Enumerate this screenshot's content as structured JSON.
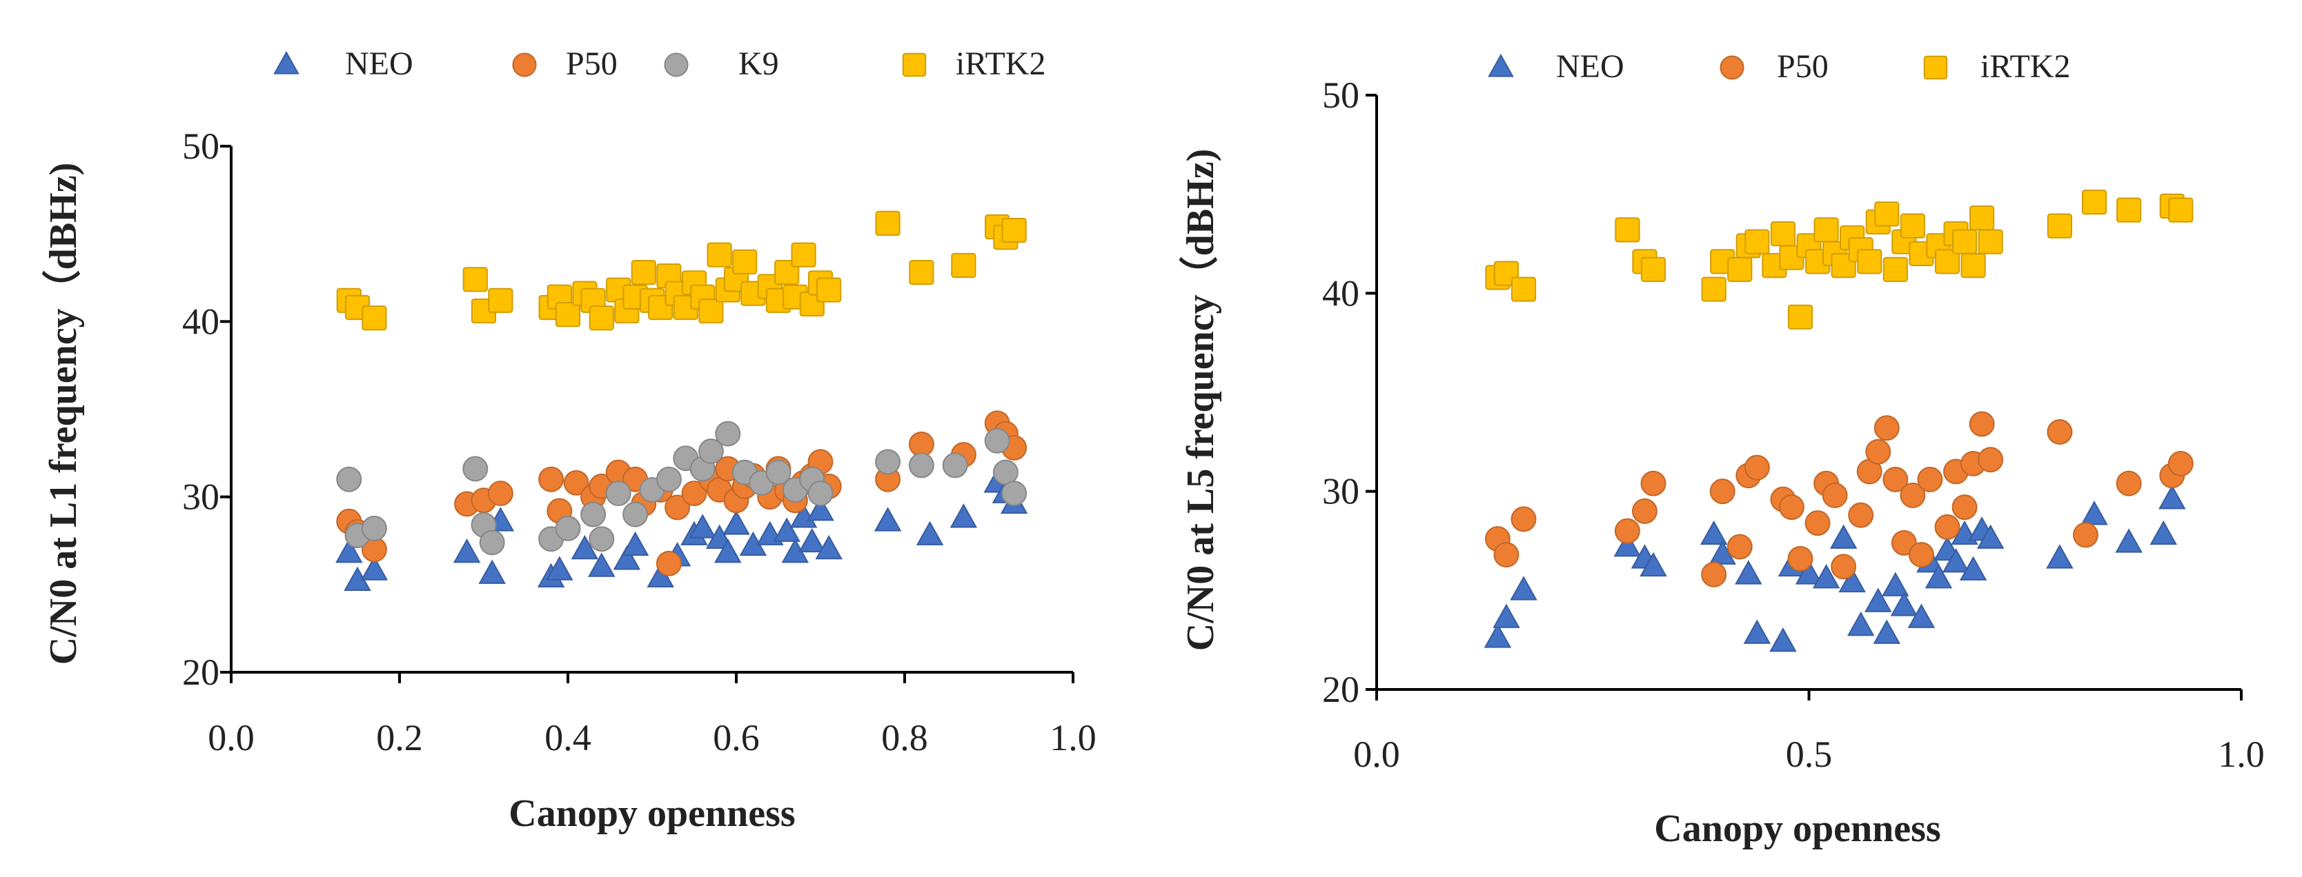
{
  "chart_data": [
    {
      "type": "scatter",
      "xlabel": "Canopy openness",
      "ylabel": "C/N0 at L1 frequency（dBHz)",
      "xlim": [
        0.0,
        1.0
      ],
      "ylim": [
        20,
        50
      ],
      "xticks": [
        "0.0",
        "0.2",
        "0.4",
        "0.6",
        "0.8",
        "1.0"
      ],
      "yticks": [
        "20",
        "30",
        "40",
        "50"
      ],
      "legend_position": "top",
      "series": [
        {
          "name": "NEO",
          "marker": "triangle",
          "color": "#4472C4",
          "points": [
            [
              0.14,
              26.8
            ],
            [
              0.15,
              25.2
            ],
            [
              0.17,
              25.8
            ],
            [
              0.28,
              26.8
            ],
            [
              0.31,
              25.6
            ],
            [
              0.32,
              28.6
            ],
            [
              0.38,
              25.4
            ],
            [
              0.39,
              25.8
            ],
            [
              0.42,
              27.0
            ],
            [
              0.44,
              26.0
            ],
            [
              0.47,
              26.4
            ],
            [
              0.48,
              27.2
            ],
            [
              0.51,
              25.4
            ],
            [
              0.53,
              26.6
            ],
            [
              0.55,
              27.8
            ],
            [
              0.56,
              28.2
            ],
            [
              0.58,
              27.6
            ],
            [
              0.59,
              26.8
            ],
            [
              0.6,
              28.4
            ],
            [
              0.62,
              27.2
            ],
            [
              0.64,
              27.8
            ],
            [
              0.66,
              28.0
            ],
            [
              0.67,
              26.8
            ],
            [
              0.68,
              28.8
            ],
            [
              0.69,
              27.4
            ],
            [
              0.7,
              29.2
            ],
            [
              0.71,
              27.0
            ],
            [
              0.78,
              28.6
            ],
            [
              0.83,
              27.8
            ],
            [
              0.87,
              28.8
            ],
            [
              0.91,
              30.8
            ],
            [
              0.92,
              30.2
            ],
            [
              0.93,
              29.6
            ]
          ]
        },
        {
          "name": "P50",
          "marker": "circle",
          "color": "#ED7D31",
          "points": [
            [
              0.14,
              28.6
            ],
            [
              0.15,
              28.0
            ],
            [
              0.17,
              27.0
            ],
            [
              0.28,
              29.6
            ],
            [
              0.3,
              29.8
            ],
            [
              0.32,
              30.2
            ],
            [
              0.38,
              31.0
            ],
            [
              0.39,
              29.2
            ],
            [
              0.41,
              30.8
            ],
            [
              0.43,
              30.0
            ],
            [
              0.44,
              30.6
            ],
            [
              0.46,
              31.4
            ],
            [
              0.48,
              31.0
            ],
            [
              0.49,
              29.6
            ],
            [
              0.51,
              30.4
            ],
            [
              0.52,
              26.2
            ],
            [
              0.53,
              29.4
            ],
            [
              0.55,
              30.2
            ],
            [
              0.57,
              31.0
            ],
            [
              0.58,
              30.4
            ],
            [
              0.59,
              31.6
            ],
            [
              0.6,
              29.8
            ],
            [
              0.61,
              30.6
            ],
            [
              0.62,
              31.2
            ],
            [
              0.64,
              30.0
            ],
            [
              0.65,
              31.6
            ],
            [
              0.66,
              30.4
            ],
            [
              0.67,
              29.8
            ],
            [
              0.68,
              30.8
            ],
            [
              0.69,
              31.2
            ],
            [
              0.7,
              32.0
            ],
            [
              0.71,
              30.6
            ],
            [
              0.78,
              31.0
            ],
            [
              0.82,
              33.0
            ],
            [
              0.87,
              32.4
            ],
            [
              0.91,
              34.2
            ],
            [
              0.92,
              33.6
            ],
            [
              0.93,
              32.8
            ]
          ]
        },
        {
          "name": "K9",
          "marker": "circle",
          "color": "#A5A5A5",
          "points": [
            [
              0.14,
              31.0
            ],
            [
              0.15,
              27.8
            ],
            [
              0.17,
              28.2
            ],
            [
              0.29,
              31.6
            ],
            [
              0.3,
              28.4
            ],
            [
              0.31,
              27.4
            ],
            [
              0.38,
              27.6
            ],
            [
              0.4,
              28.2
            ],
            [
              0.43,
              29.0
            ],
            [
              0.44,
              27.6
            ],
            [
              0.46,
              30.2
            ],
            [
              0.48,
              29.0
            ],
            [
              0.5,
              30.4
            ],
            [
              0.52,
              31.0
            ],
            [
              0.54,
              32.2
            ],
            [
              0.56,
              31.6
            ],
            [
              0.57,
              32.6
            ],
            [
              0.59,
              33.6
            ],
            [
              0.61,
              31.4
            ],
            [
              0.63,
              30.8
            ],
            [
              0.65,
              31.4
            ],
            [
              0.67,
              30.4
            ],
            [
              0.69,
              31.0
            ],
            [
              0.7,
              30.2
            ],
            [
              0.78,
              32.0
            ],
            [
              0.82,
              31.8
            ],
            [
              0.86,
              31.8
            ],
            [
              0.91,
              33.2
            ],
            [
              0.92,
              31.4
            ],
            [
              0.93,
              30.2
            ]
          ]
        },
        {
          "name": "iRTK2",
          "marker": "square",
          "color": "#FFC000",
          "points": [
            [
              0.14,
              41.2
            ],
            [
              0.15,
              40.8
            ],
            [
              0.17,
              40.2
            ],
            [
              0.29,
              42.4
            ],
            [
              0.3,
              40.6
            ],
            [
              0.32,
              41.2
            ],
            [
              0.38,
              40.8
            ],
            [
              0.39,
              41.4
            ],
            [
              0.4,
              40.4
            ],
            [
              0.42,
              41.6
            ],
            [
              0.43,
              41.2
            ],
            [
              0.44,
              40.2
            ],
            [
              0.46,
              41.8
            ],
            [
              0.47,
              40.6
            ],
            [
              0.48,
              41.4
            ],
            [
              0.49,
              42.8
            ],
            [
              0.5,
              41.2
            ],
            [
              0.51,
              40.8
            ],
            [
              0.52,
              42.6
            ],
            [
              0.53,
              41.6
            ],
            [
              0.54,
              40.8
            ],
            [
              0.55,
              42.2
            ],
            [
              0.56,
              41.4
            ],
            [
              0.57,
              40.6
            ],
            [
              0.58,
              43.8
            ],
            [
              0.59,
              41.8
            ],
            [
              0.6,
              42.4
            ],
            [
              0.61,
              43.4
            ],
            [
              0.62,
              41.6
            ],
            [
              0.64,
              42.0
            ],
            [
              0.65,
              41.2
            ],
            [
              0.66,
              42.8
            ],
            [
              0.67,
              41.4
            ],
            [
              0.68,
              43.8
            ],
            [
              0.69,
              41.0
            ],
            [
              0.7,
              42.2
            ],
            [
              0.71,
              41.8
            ],
            [
              0.78,
              45.6
            ],
            [
              0.82,
              42.8
            ],
            [
              0.87,
              43.2
            ],
            [
              0.91,
              45.4
            ],
            [
              0.92,
              44.8
            ],
            [
              0.93,
              45.2
            ]
          ]
        }
      ]
    },
    {
      "type": "scatter",
      "xlabel": "Canopy openness",
      "ylabel": "C/N0 at L5 frequency（dBHz)",
      "xlim": [
        0.0,
        1.0
      ],
      "ylim": [
        20,
        50
      ],
      "xticks": [
        "0.0",
        "0.5",
        "1.0"
      ],
      "yticks": [
        "20",
        "30",
        "40",
        "50"
      ],
      "legend_position": "top",
      "series": [
        {
          "name": "NEO",
          "marker": "triangle",
          "color": "#4472C4",
          "points": [
            [
              0.14,
              22.6
            ],
            [
              0.15,
              23.6
            ],
            [
              0.17,
              25.0
            ],
            [
              0.29,
              27.2
            ],
            [
              0.31,
              26.6
            ],
            [
              0.32,
              26.2
            ],
            [
              0.39,
              27.8
            ],
            [
              0.4,
              26.8
            ],
            [
              0.43,
              25.8
            ],
            [
              0.44,
              22.8
            ],
            [
              0.47,
              22.4
            ],
            [
              0.48,
              26.2
            ],
            [
              0.5,
              25.8
            ],
            [
              0.52,
              25.6
            ],
            [
              0.54,
              27.6
            ],
            [
              0.55,
              25.4
            ],
            [
              0.56,
              23.2
            ],
            [
              0.58,
              24.4
            ],
            [
              0.59,
              22.8
            ],
            [
              0.6,
              25.2
            ],
            [
              0.61,
              24.2
            ],
            [
              0.63,
              23.6
            ],
            [
              0.64,
              26.4
            ],
            [
              0.65,
              25.6
            ],
            [
              0.66,
              27.0
            ],
            [
              0.67,
              26.4
            ],
            [
              0.68,
              27.8
            ],
            [
              0.69,
              26.0
            ],
            [
              0.7,
              28.0
            ],
            [
              0.71,
              27.6
            ],
            [
              0.79,
              26.6
            ],
            [
              0.83,
              28.8
            ],
            [
              0.87,
              27.4
            ],
            [
              0.91,
              27.8
            ],
            [
              0.92,
              29.6
            ]
          ]
        },
        {
          "name": "P50",
          "marker": "circle",
          "color": "#ED7D31",
          "points": [
            [
              0.14,
              27.6
            ],
            [
              0.15,
              26.8
            ],
            [
              0.17,
              28.6
            ],
            [
              0.29,
              28.0
            ],
            [
              0.31,
              29.0
            ],
            [
              0.32,
              30.4
            ],
            [
              0.39,
              25.8
            ],
            [
              0.4,
              30.0
            ],
            [
              0.42,
              27.2
            ],
            [
              0.43,
              30.8
            ],
            [
              0.44,
              31.2
            ],
            [
              0.47,
              29.6
            ],
            [
              0.48,
              29.2
            ],
            [
              0.49,
              26.6
            ],
            [
              0.51,
              28.4
            ],
            [
              0.52,
              30.4
            ],
            [
              0.53,
              29.8
            ],
            [
              0.54,
              26.2
            ],
            [
              0.56,
              28.8
            ],
            [
              0.57,
              31.0
            ],
            [
              0.58,
              32.0
            ],
            [
              0.59,
              33.2
            ],
            [
              0.6,
              30.6
            ],
            [
              0.61,
              27.4
            ],
            [
              0.62,
              29.8
            ],
            [
              0.63,
              26.8
            ],
            [
              0.64,
              30.6
            ],
            [
              0.66,
              28.2
            ],
            [
              0.67,
              31.0
            ],
            [
              0.68,
              29.2
            ],
            [
              0.69,
              31.4
            ],
            [
              0.7,
              33.4
            ],
            [
              0.71,
              31.6
            ],
            [
              0.79,
              33.0
            ],
            [
              0.82,
              27.8
            ],
            [
              0.87,
              30.4
            ],
            [
              0.92,
              30.8
            ],
            [
              0.93,
              31.4
            ]
          ]
        },
        {
          "name": "iRTK2",
          "marker": "square",
          "color": "#FFC000",
          "points": [
            [
              0.14,
              40.8
            ],
            [
              0.15,
              41.0
            ],
            [
              0.17,
              40.2
            ],
            [
              0.29,
              43.2
            ],
            [
              0.31,
              41.6
            ],
            [
              0.32,
              41.2
            ],
            [
              0.39,
              40.2
            ],
            [
              0.4,
              41.6
            ],
            [
              0.42,
              41.2
            ],
            [
              0.43,
              42.4
            ],
            [
              0.44,
              42.6
            ],
            [
              0.46,
              41.4
            ],
            [
              0.47,
              43.0
            ],
            [
              0.48,
              41.8
            ],
            [
              0.49,
              38.8
            ],
            [
              0.5,
              42.4
            ],
            [
              0.51,
              41.6
            ],
            [
              0.52,
              43.2
            ],
            [
              0.53,
              42.0
            ],
            [
              0.54,
              41.4
            ],
            [
              0.55,
              42.8
            ],
            [
              0.56,
              42.2
            ],
            [
              0.57,
              41.6
            ],
            [
              0.58,
              43.6
            ],
            [
              0.59,
              44.0
            ],
            [
              0.6,
              41.2
            ],
            [
              0.61,
              42.6
            ],
            [
              0.62,
              43.4
            ],
            [
              0.63,
              42.0
            ],
            [
              0.65,
              42.4
            ],
            [
              0.66,
              41.6
            ],
            [
              0.67,
              43.0
            ],
            [
              0.68,
              42.6
            ],
            [
              0.69,
              41.4
            ],
            [
              0.7,
              43.8
            ],
            [
              0.71,
              42.6
            ],
            [
              0.79,
              43.4
            ],
            [
              0.83,
              44.6
            ],
            [
              0.87,
              44.2
            ],
            [
              0.92,
              44.4
            ],
            [
              0.93,
              44.2
            ]
          ]
        }
      ]
    }
  ]
}
